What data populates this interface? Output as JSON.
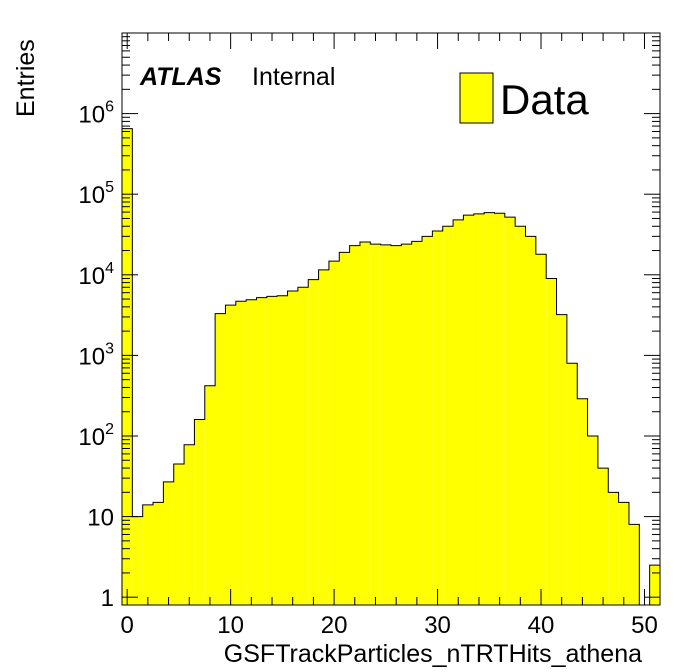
{
  "chart_data": {
    "type": "bar",
    "histogram": true,
    "xlabel": "GSFTrackParticles_nTRTHits_athena",
    "ylabel": "Entries",
    "xlim": [
      -0.5,
      51.5
    ],
    "ylim": [
      0.8,
      10000000
    ],
    "log_y": true,
    "grid": false,
    "bar_color": "#ffff00",
    "edge_color": "#000000",
    "x_ticks": [
      0,
      10,
      20,
      30,
      40,
      50
    ],
    "x_tick_labels": [
      "0",
      "10",
      "20",
      "30",
      "40",
      "50"
    ],
    "y_ticks": [
      {
        "value": 1,
        "base": "1",
        "exp": ""
      },
      {
        "value": 10,
        "base": "10",
        "exp": ""
      },
      {
        "value": 100,
        "base": "10",
        "exp": "2"
      },
      {
        "value": 1000,
        "base": "10",
        "exp": "3"
      },
      {
        "value": 10000,
        "base": "10",
        "exp": "4"
      },
      {
        "value": 100000,
        "base": "10",
        "exp": "5"
      },
      {
        "value": 1000000,
        "base": "10",
        "exp": "6"
      }
    ],
    "bin_centers": [
      0,
      1,
      2,
      3,
      4,
      5,
      6,
      7,
      8,
      9,
      10,
      11,
      12,
      13,
      14,
      15,
      16,
      17,
      18,
      19,
      20,
      21,
      22,
      23,
      24,
      25,
      26,
      27,
      28,
      29,
      30,
      31,
      32,
      33,
      34,
      35,
      36,
      37,
      38,
      39,
      40,
      41,
      42,
      43,
      44,
      45,
      46,
      47,
      48,
      49,
      50,
      51
    ],
    "values": [
      650000,
      10,
      14,
      15,
      27,
      45,
      78,
      160,
      420,
      3300,
      4200,
      4700,
      4900,
      5200,
      5400,
      5500,
      6300,
      7000,
      8700,
      11500,
      14800,
      19000,
      23000,
      25500,
      24000,
      23500,
      23000,
      24000,
      26000,
      30000,
      35000,
      40000,
      48000,
      55000,
      57000,
      59000,
      58000,
      52000,
      40000,
      30000,
      18000,
      9000,
      3200,
      800,
      290,
      100,
      40,
      20,
      15,
      8,
      0.5,
      2.5
    ],
    "legend": {
      "label": "Data",
      "color": "#ffff00",
      "position": "top-right"
    },
    "atlas_label": {
      "bold": "ATLAS",
      "text": "Internal"
    }
  }
}
